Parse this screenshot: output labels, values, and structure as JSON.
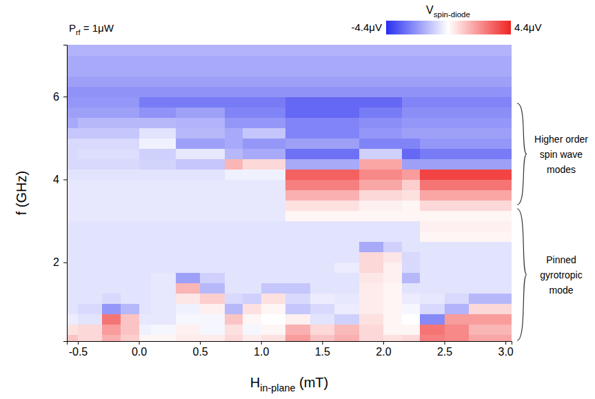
{
  "chart_data": {
    "type": "heatmap",
    "power_label": [
      "P",
      "rf",
      " = 1μW"
    ],
    "x_label": [
      "H",
      "in-plane",
      " (mT)"
    ],
    "y_label": "f (GHz)",
    "regions": [
      {
        "label": [
          "Higher order",
          "spin wave",
          "modes"
        ]
      },
      {
        "label": [
          "Pinned",
          "gyrotropic",
          "mode"
        ]
      }
    ],
    "xlim": [
      -0.59,
      3.05
    ],
    "xticks": [
      -0.5,
      {
        "value": 0,
        "label": "0.0"
      },
      0.5,
      {
        "value": 1,
        "label": "1.0"
      },
      1.5,
      {
        "value": 2,
        "label": "2.0"
      },
      2.5,
      {
        "value": 3,
        "label": "3.0"
      }
    ],
    "ylim": [
      0.1,
      7.25
    ],
    "yticks": [
      2,
      4,
      6
    ],
    "x_edges": [
      -0.65,
      -0.5,
      -0.3,
      -0.15,
      0.0,
      0.1,
      0.3,
      0.5,
      0.7,
      0.85,
      1.0,
      1.2,
      1.4,
      1.6,
      1.8,
      2.0,
      2.15,
      2.3,
      2.5,
      2.7,
      3.1
    ],
    "y_edges": [
      0,
      0.25,
      0.5,
      0.75,
      1.0,
      1.25,
      1.5,
      1.75,
      2.0,
      2.25,
      2.5,
      2.75,
      3.0,
      3.25,
      3.5,
      3.75,
      4.0,
      4.25,
      4.5,
      4.75,
      5.0,
      5.25,
      5.5,
      5.75,
      6.0,
      6.25,
      6.5,
      6.75,
      7.0,
      7.25
    ],
    "cells": [
      [
        1.2,
        0.8,
        1.6,
        1.0,
        0.2,
        0.2,
        0.4,
        0.4,
        0.8,
        0.4,
        0.6,
        2.0,
        1.2,
        1.6,
        0.8,
        0.6,
        0.8,
        2.6,
        2.4,
        1.8
      ],
      [
        0.6,
        0.8,
        2.0,
        1.2,
        -0.3,
        -0.2,
        0.3,
        -0.2,
        0.6,
        -0.2,
        0.2,
        1.6,
        0.8,
        1.4,
        0.8,
        0.2,
        0.2,
        2.8,
        2.4,
        1.5
      ],
      [
        -0.4,
        -0.6,
        2.8,
        1.2,
        -0.5,
        -0.5,
        -0.2,
        -0.2,
        1.2,
        0.2,
        0.0,
        0.3,
        -0.6,
        -1.0,
        0.6,
        0.2,
        0.0,
        -2.5,
        2.0,
        2.0
      ],
      [
        -0.6,
        -0.8,
        -2.2,
        -1.5,
        -0.6,
        -0.5,
        -0.3,
        0.3,
        -1.5,
        0.6,
        0.2,
        -1.2,
        -0.8,
        -0.4,
        0.4,
        0.2,
        -0.2,
        -0.8,
        -1.6,
        0.8
      ],
      [
        -0.6,
        -0.6,
        -0.8,
        -0.6,
        -0.6,
        -0.5,
        0.5,
        1.0,
        -0.8,
        -1.0,
        0.6,
        -0.8,
        -0.4,
        -0.5,
        0.4,
        0.2,
        -0.4,
        -0.5,
        -0.8,
        -1.5
      ],
      [
        -0.6,
        -0.6,
        -0.6,
        -0.6,
        -0.6,
        -0.5,
        1.5,
        -1.5,
        -0.6,
        -0.6,
        -1.2,
        -1.2,
        -0.6,
        -0.6,
        0.4,
        0.2,
        -0.6,
        -0.6,
        -0.6,
        -0.6
      ],
      [
        -0.6,
        -0.6,
        -0.6,
        -0.6,
        -0.6,
        -0.5,
        -2.0,
        -1.0,
        -0.6,
        -0.6,
        -0.6,
        -0.6,
        -0.6,
        -0.6,
        0.5,
        0.3,
        -1.5,
        -0.6,
        -0.6,
        -0.6
      ],
      [
        -0.6,
        -0.6,
        -0.6,
        -0.6,
        -0.6,
        -0.6,
        -0.6,
        -0.6,
        -0.6,
        -0.6,
        -0.6,
        -0.6,
        -0.6,
        -0.4,
        0.8,
        0.3,
        -0.8,
        -0.6,
        -0.6,
        -0.6
      ],
      [
        -0.6,
        -0.6,
        -0.6,
        -0.6,
        -0.6,
        -0.6,
        -0.6,
        -0.6,
        -0.6,
        -0.6,
        -0.6,
        -0.6,
        -0.6,
        -0.6,
        0.8,
        0.5,
        -0.8,
        -0.6,
        -0.6,
        -0.6
      ],
      [
        -0.6,
        -0.6,
        -0.6,
        -0.6,
        -0.6,
        -0.6,
        -0.6,
        -0.6,
        -0.6,
        -0.6,
        -0.6,
        -0.6,
        -0.6,
        -0.6,
        -1.8,
        -1.0,
        -0.6,
        -0.6,
        -0.6,
        -0.6
      ],
      [
        -0.6,
        -0.6,
        -0.6,
        -0.6,
        -0.6,
        -0.6,
        -0.6,
        -0.6,
        -0.6,
        -0.6,
        -0.6,
        -0.6,
        -0.6,
        -0.6,
        -0.6,
        -0.6,
        -0.6,
        0.2,
        0.2,
        0.2
      ],
      [
        -0.6,
        -0.6,
        -0.6,
        -0.6,
        -0.6,
        -0.6,
        -0.6,
        -0.6,
        -0.6,
        -0.6,
        -0.6,
        -0.6,
        -0.6,
        -0.6,
        -0.6,
        -0.6,
        -0.6,
        0.3,
        0.3,
        0.3
      ],
      [
        -0.5,
        -0.5,
        -0.5,
        -0.5,
        -0.5,
        -0.5,
        -0.5,
        -0.5,
        -0.5,
        -0.5,
        -0.5,
        0.2,
        0.2,
        0.2,
        0.2,
        0.2,
        0.2,
        0.2,
        0.2,
        0.2
      ],
      [
        -0.5,
        -0.5,
        -0.5,
        -0.5,
        -0.5,
        -0.5,
        -0.5,
        -0.5,
        -0.5,
        -0.5,
        -0.5,
        0.6,
        0.6,
        0.6,
        0.3,
        0.3,
        0.2,
        0.8,
        0.8,
        0.8
      ],
      [
        -0.5,
        -0.5,
        -0.5,
        -0.5,
        -0.5,
        -0.5,
        -0.5,
        -0.5,
        -0.5,
        -0.5,
        -0.5,
        1.6,
        1.6,
        1.6,
        0.8,
        0.8,
        0.6,
        1.8,
        1.8,
        1.8
      ],
      [
        -0.5,
        -0.5,
        -0.5,
        -0.5,
        -0.5,
        -0.5,
        -0.5,
        -0.5,
        -0.5,
        -0.5,
        -0.5,
        2.6,
        2.6,
        2.6,
        1.8,
        1.8,
        1.0,
        2.8,
        2.8,
        2.8
      ],
      [
        -0.6,
        -0.6,
        -0.6,
        -0.6,
        -0.6,
        -0.6,
        -0.6,
        -0.6,
        -0.3,
        -0.3,
        -0.3,
        3.2,
        3.2,
        3.2,
        2.4,
        2.4,
        2.0,
        3.8,
        3.8,
        3.8
      ],
      [
        -0.8,
        -0.8,
        -0.8,
        -0.8,
        -0.9,
        -0.9,
        -1.2,
        -1.2,
        1.5,
        0.8,
        0.8,
        -1.8,
        -1.8,
        -1.8,
        1.8,
        1.8,
        -2.0,
        -2.0,
        -2.0,
        -2.0
      ],
      [
        -0.8,
        -0.7,
        -0.7,
        -0.7,
        -1.0,
        -1.0,
        -0.5,
        -0.5,
        -1.5,
        -1.8,
        -1.8,
        -3.0,
        -3.0,
        -3.0,
        -1.0,
        -1.0,
        -3.2,
        -2.8,
        -2.8,
        -2.8
      ],
      [
        -0.8,
        -0.8,
        -0.8,
        -0.8,
        -0.3,
        -0.3,
        -2.0,
        -2.0,
        -1.8,
        -2.2,
        -2.2,
        -2.0,
        -2.0,
        -2.0,
        -2.6,
        -2.6,
        -2.6,
        -2.2,
        -2.2,
        -2.2
      ],
      [
        -1.2,
        -1.2,
        -1.2,
        -1.2,
        -0.6,
        -0.6,
        -1.5,
        -1.5,
        -1.8,
        -1.2,
        -1.2,
        -2.6,
        -2.6,
        -2.6,
        -2.2,
        -2.2,
        -2.0,
        -2.0,
        -2.0,
        -2.0
      ],
      [
        -1.8,
        -1.5,
        -1.5,
        -1.5,
        -1.5,
        -1.5,
        -1.6,
        -1.6,
        -2.2,
        -2.2,
        -2.2,
        -2.6,
        -2.6,
        -2.6,
        -2.4,
        -2.4,
        -2.2,
        -2.2,
        -2.2,
        -2.2
      ],
      [
        -2.0,
        -2.0,
        -2.0,
        -2.0,
        -2.3,
        -2.3,
        -2.0,
        -2.0,
        -2.6,
        -2.6,
        -2.6,
        -3.2,
        -3.2,
        -3.2,
        -2.8,
        -2.8,
        -2.4,
        -2.4,
        -2.4,
        -2.4
      ],
      [
        -2.2,
        -2.2,
        -2.2,
        -2.2,
        -2.8,
        -2.8,
        -2.8,
        -2.8,
        -2.8,
        -2.8,
        -2.8,
        -3.2,
        -3.2,
        -3.2,
        -3.2,
        -3.2,
        -2.6,
        -2.6,
        -2.6,
        -2.6
      ],
      [
        -2.3,
        -2.3,
        -2.3,
        -2.3,
        -2.3,
        -2.3,
        -2.3,
        -2.3,
        -2.3,
        -2.3,
        -2.3,
        -2.3,
        -2.3,
        -2.3,
        -2.3,
        -2.3,
        -2.3,
        -2.3,
        -2.3,
        -2.3
      ],
      [
        -2.0,
        -2.0,
        -2.0,
        -2.0,
        -2.0,
        -2.0,
        -2.0,
        -2.0,
        -2.0,
        -2.0,
        -2.0,
        -2.0,
        -2.0,
        -2.0,
        -2.0,
        -2.0,
        -2.0,
        -2.0,
        -2.0,
        -2.0
      ],
      [
        -1.8,
        -1.8,
        -1.8,
        -1.8,
        -1.8,
        -1.8,
        -1.8,
        -1.8,
        -1.8,
        -1.8,
        -1.8,
        -1.8,
        -1.8,
        -1.8,
        -1.8,
        -1.8,
        -1.8,
        -1.8,
        -1.8,
        -1.8
      ],
      [
        -1.8,
        -1.8,
        -1.8,
        -1.8,
        -1.8,
        -1.8,
        -1.8,
        -1.8,
        -1.8,
        -1.8,
        -1.8,
        -1.8,
        -1.8,
        -1.8,
        -1.8,
        -1.8,
        -1.8,
        -1.8,
        -1.8,
        -1.8
      ],
      [
        -1.6,
        -1.6,
        -1.6,
        -1.6,
        -1.6,
        -1.6,
        -1.6,
        -1.6,
        -1.6,
        -1.6,
        -1.6,
        -1.6,
        -1.6,
        -1.6,
        -1.6,
        -1.6,
        -1.6,
        -1.6,
        -1.6,
        -1.6
      ]
    ],
    "colorbar": {
      "label": [
        "V",
        "spin-diode"
      ],
      "range": [
        -4.4,
        4.4
      ],
      "ticks": [
        {
          "value": -4.4,
          "label": "-4.4μV"
        },
        {
          "value": 4.4,
          "label": "4.4μV"
        }
      ]
    }
  }
}
